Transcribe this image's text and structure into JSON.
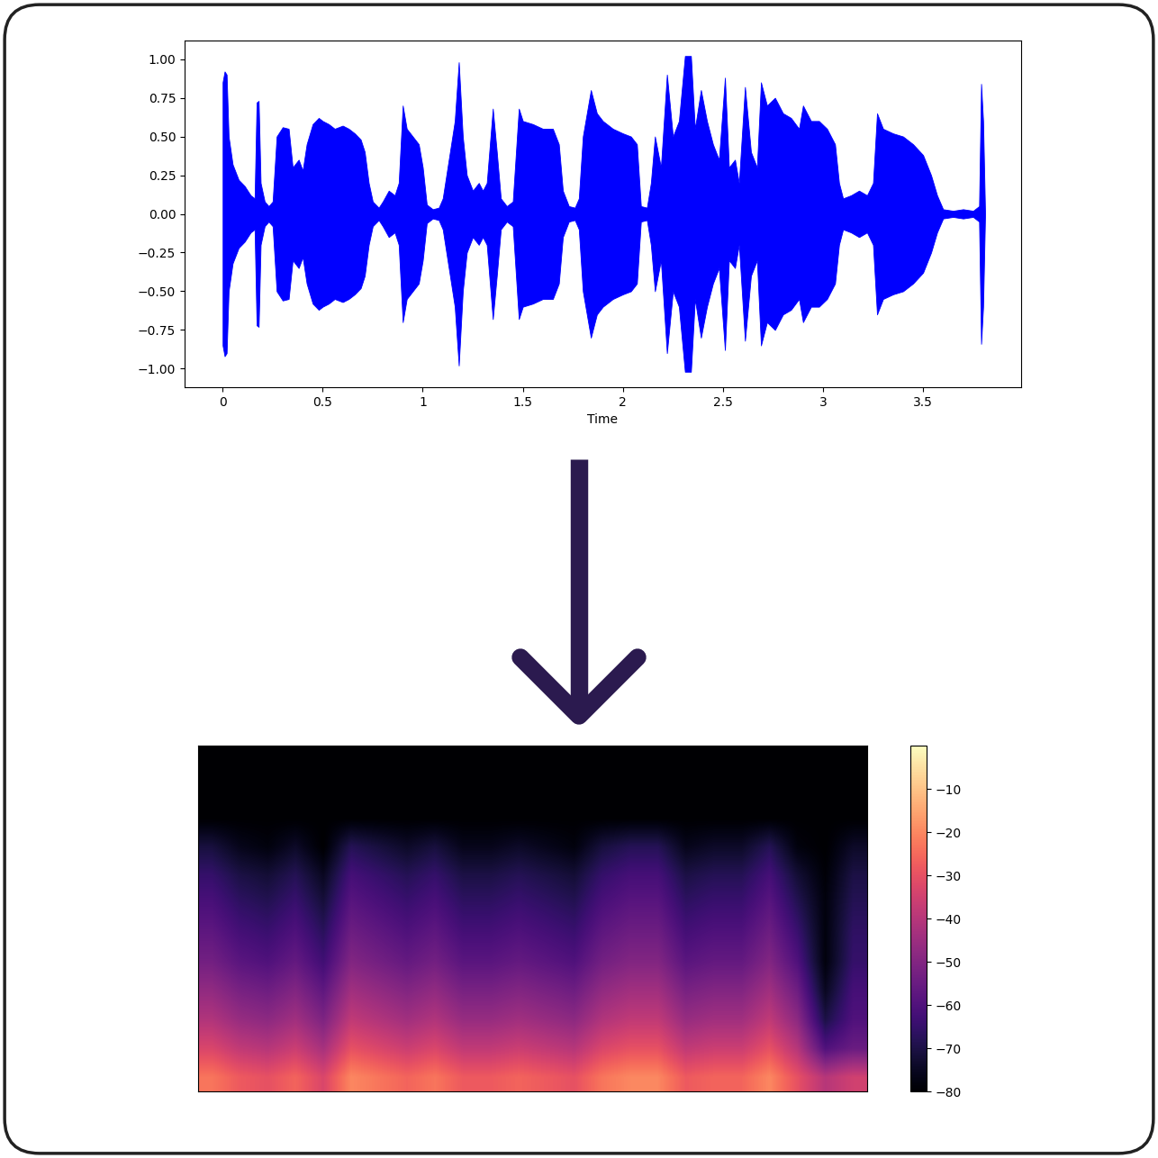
{
  "chart_data": [
    {
      "type": "area",
      "x": [
        0.0,
        0.01,
        0.02,
        0.03,
        0.05,
        0.08,
        0.11,
        0.14,
        0.16,
        0.17,
        0.18,
        0.19,
        0.21,
        0.23,
        0.25,
        0.27,
        0.3,
        0.33,
        0.35,
        0.38,
        0.4,
        0.42,
        0.45,
        0.48,
        0.5,
        0.53,
        0.56,
        0.6,
        0.63,
        0.66,
        0.69,
        0.71,
        0.73,
        0.75,
        0.78,
        0.8,
        0.83,
        0.86,
        0.88,
        0.9,
        0.92,
        0.95,
        0.98,
        1.0,
        1.02,
        1.05,
        1.08,
        1.1,
        1.13,
        1.16,
        1.18,
        1.2,
        1.22,
        1.25,
        1.28,
        1.3,
        1.32,
        1.35,
        1.37,
        1.39,
        1.42,
        1.45,
        1.48,
        1.5,
        1.55,
        1.6,
        1.65,
        1.68,
        1.7,
        1.73,
        1.76,
        1.78,
        1.8,
        1.84,
        1.87,
        1.9,
        1.95,
        2.0,
        2.04,
        2.07,
        2.09,
        2.12,
        2.14,
        2.16,
        2.19,
        2.22,
        2.25,
        2.28,
        2.31,
        2.34,
        2.36,
        2.39,
        2.42,
        2.45,
        2.48,
        2.51,
        2.53,
        2.56,
        2.58,
        2.61,
        2.64,
        2.67,
        2.69,
        2.72,
        2.76,
        2.8,
        2.84,
        2.88,
        2.9,
        2.94,
        2.98,
        3.02,
        3.06,
        3.08,
        3.1,
        3.14,
        3.18,
        3.22,
        3.25,
        3.27,
        3.3,
        3.35,
        3.4,
        3.45,
        3.5,
        3.54,
        3.57,
        3.6,
        3.65,
        3.7,
        3.75,
        3.78,
        3.79,
        3.8,
        3.81
      ],
      "values": [
        0.85,
        0.92,
        0.9,
        0.5,
        0.32,
        0.22,
        0.18,
        0.12,
        0.1,
        0.72,
        0.73,
        0.2,
        0.08,
        0.05,
        0.08,
        0.5,
        0.56,
        0.55,
        0.3,
        0.35,
        0.28,
        0.45,
        0.58,
        0.62,
        0.6,
        0.58,
        0.55,
        0.57,
        0.55,
        0.52,
        0.48,
        0.4,
        0.2,
        0.08,
        0.04,
        0.08,
        0.15,
        0.12,
        0.2,
        0.7,
        0.55,
        0.5,
        0.45,
        0.3,
        0.06,
        0.03,
        0.04,
        0.1,
        0.35,
        0.6,
        0.98,
        0.5,
        0.25,
        0.15,
        0.2,
        0.15,
        0.2,
        0.68,
        0.4,
        0.1,
        0.05,
        0.08,
        0.68,
        0.6,
        0.58,
        0.55,
        0.55,
        0.45,
        0.15,
        0.05,
        0.04,
        0.1,
        0.5,
        0.8,
        0.65,
        0.6,
        0.55,
        0.52,
        0.5,
        0.45,
        0.05,
        0.04,
        0.2,
        0.5,
        0.3,
        0.9,
        0.5,
        0.6,
        1.02,
        1.02,
        0.55,
        0.8,
        0.6,
        0.45,
        0.35,
        0.88,
        0.3,
        0.35,
        0.2,
        0.82,
        0.4,
        0.3,
        0.85,
        0.7,
        0.75,
        0.65,
        0.62,
        0.55,
        0.7,
        0.6,
        0.6,
        0.55,
        0.45,
        0.2,
        0.1,
        0.12,
        0.15,
        0.12,
        0.2,
        0.65,
        0.55,
        0.52,
        0.5,
        0.45,
        0.38,
        0.25,
        0.12,
        0.03,
        0.02,
        0.03,
        0.02,
        0.05,
        0.84,
        0.6,
        0.0
      ],
      "color": "#0000ff",
      "xlabel": "Time",
      "xlim": [
        -0.19,
        3.99
      ],
      "xticks": [
        0,
        0.5,
        1,
        1.5,
        2,
        2.5,
        3,
        3.5
      ],
      "ylim": [
        -1.12,
        1.12
      ],
      "yticks": [
        {
          "value": -1.0,
          "label": "−1.00"
        },
        {
          "value": -0.75,
          "label": "−0.75"
        },
        {
          "value": -0.5,
          "label": "−0.50"
        },
        {
          "value": -0.25,
          "label": "−0.25"
        },
        {
          "value": 0.0,
          "label": "0.00"
        },
        {
          "value": 0.25,
          "label": "0.25"
        },
        {
          "value": 0.5,
          "label": "0.50"
        },
        {
          "value": 0.75,
          "label": "0.75"
        },
        {
          "value": 1.0,
          "label": "1.00"
        }
      ]
    },
    {
      "type": "heatmap",
      "tick_labels": false,
      "cells": [
        [
          -23,
          -28,
          -30,
          -26,
          -33,
          -20,
          -23,
          -26,
          -23,
          -28,
          -28,
          -26,
          -28,
          -30,
          -23,
          -20,
          -20,
          -28,
          -26,
          -26,
          -20,
          -30,
          -40,
          -35
        ],
        [
          -33,
          -38,
          -40,
          -36,
          -43,
          -30,
          -33,
          -36,
          -33,
          -38,
          -38,
          -36,
          -38,
          -40,
          -33,
          -30,
          -30,
          -38,
          -36,
          -36,
          -30,
          -40,
          -60,
          -55
        ],
        [
          -41,
          -46,
          -48,
          -44,
          -51,
          -38,
          -41,
          -44,
          -41,
          -46,
          -46,
          -44,
          -46,
          -48,
          -41,
          -38,
          -38,
          -46,
          -44,
          -44,
          -38,
          -48,
          -70,
          -60
        ],
        [
          -47,
          -52,
          -54,
          -50,
          -57,
          -44,
          -47,
          -50,
          -47,
          -52,
          -52,
          -50,
          -52,
          -54,
          -47,
          -44,
          -44,
          -52,
          -50,
          -50,
          -44,
          -54,
          -75,
          -62
        ],
        [
          -53,
          -58,
          -60,
          -56,
          -63,
          -50,
          -53,
          -56,
          -53,
          -58,
          -58,
          -56,
          -58,
          -60,
          -53,
          -50,
          -50,
          -58,
          -56,
          -56,
          -50,
          -60,
          -78,
          -65
        ],
        [
          -57,
          -62,
          -64,
          -60,
          -67,
          -54,
          -57,
          -60,
          -57,
          -62,
          -62,
          -60,
          -62,
          -64,
          -57,
          -54,
          -54,
          -62,
          -60,
          -60,
          -54,
          -64,
          -78,
          -66
        ],
        [
          -61,
          -66,
          -68,
          -64,
          -71,
          -58,
          -61,
          -64,
          -61,
          -66,
          -66,
          -64,
          -66,
          -68,
          -61,
          -58,
          -58,
          -66,
          -64,
          -64,
          -58,
          -68,
          -78,
          -68
        ],
        [
          -65,
          -70,
          -72,
          -68,
          -75,
          -62,
          -65,
          -68,
          -65,
          -70,
          -70,
          -68,
          -70,
          -72,
          -65,
          -62,
          -62,
          -70,
          -68,
          -68,
          -62,
          -72,
          -79,
          -70
        ],
        [
          -71,
          -76,
          -78,
          -74,
          -80,
          -68,
          -71,
          -74,
          -71,
          -76,
          -76,
          -74,
          -76,
          -78,
          -71,
          -68,
          -68,
          -76,
          -74,
          -74,
          -68,
          -78,
          -80,
          -74
        ],
        [
          -80,
          -80,
          -80,
          -80,
          -80,
          -80,
          -80,
          -80,
          -80,
          -80,
          -80,
          -80,
          -80,
          -80,
          -80,
          -80,
          -80,
          -80,
          -80,
          -80,
          -80,
          -80,
          -80,
          -80
        ],
        [
          -80,
          -80,
          -80,
          -80,
          -80,
          -80,
          -80,
          -80,
          -80,
          -80,
          -80,
          -80,
          -80,
          -80,
          -80,
          -80,
          -80,
          -80,
          -80,
          -80,
          -80,
          -80,
          -80,
          -80
        ],
        [
          -80,
          -80,
          -80,
          -80,
          -80,
          -80,
          -80,
          -80,
          -80,
          -80,
          -80,
          -80,
          -80,
          -80,
          -80,
          -80,
          -80,
          -80,
          -80,
          -80,
          -80,
          -80,
          -80,
          -80
        ]
      ],
      "colorbar_range": [
        -80,
        0
      ],
      "colorbar_ticks": [
        {
          "value": -80,
          "label": "−80"
        },
        {
          "value": -70,
          "label": "−70"
        },
        {
          "value": -60,
          "label": "−60"
        },
        {
          "value": -50,
          "label": "−50"
        },
        {
          "value": -40,
          "label": "−40"
        },
        {
          "value": -30,
          "label": "−30"
        },
        {
          "value": -20,
          "label": "−20"
        },
        {
          "value": -10,
          "label": "−10"
        }
      ]
    }
  ]
}
